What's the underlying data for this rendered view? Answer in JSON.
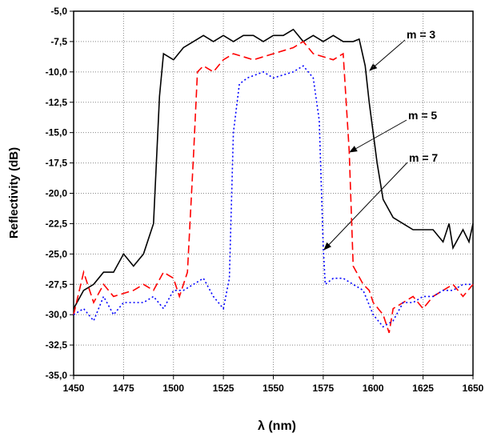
{
  "chart_data": {
    "type": "line",
    "xlabel": "λ  (nm)",
    "ylabel": "Reflectivity   (dB)",
    "xlim": [
      1450,
      1650
    ],
    "xticks": [
      1450,
      1475,
      1500,
      1525,
      1550,
      1575,
      1600,
      1625,
      1650
    ],
    "ylim": [
      -35,
      -5
    ],
    "yticks": [
      {
        "value": -35,
        "label": "-35,0"
      },
      {
        "value": -32.5,
        "label": "-32,5"
      },
      {
        "value": -30,
        "label": "-30,0"
      },
      {
        "value": -27.5,
        "label": "-27,5"
      },
      {
        "value": -25,
        "label": "-25,0"
      },
      {
        "value": -22.5,
        "label": "-22,5"
      },
      {
        "value": -20,
        "label": "-20,0"
      },
      {
        "value": -17.5,
        "label": "-17,5"
      },
      {
        "value": -15,
        "label": "-15,0"
      },
      {
        "value": -12.5,
        "label": "-12,5"
      },
      {
        "value": -10,
        "label": "-10,0"
      },
      {
        "value": -7.5,
        "label": "-7,5"
      },
      {
        "value": -5,
        "label": "-5,0"
      }
    ],
    "grid": true,
    "annotations": [
      "m = 3",
      "m = 5",
      "m = 7"
    ],
    "series": [
      {
        "color": "#000000",
        "dash": "none",
        "x": [
          1450,
          1455,
          1460,
          1465,
          1470,
          1475,
          1480,
          1485,
          1490,
          1493,
          1495,
          1500,
          1505,
          1510,
          1515,
          1520,
          1525,
          1530,
          1535,
          1540,
          1545,
          1550,
          1555,
          1560,
          1565,
          1570,
          1575,
          1580,
          1585,
          1590,
          1593,
          1596,
          1598,
          1602,
          1605,
          1610,
          1615,
          1620,
          1630,
          1635,
          1638,
          1640,
          1645,
          1648,
          1650
        ],
        "values": [
          -29.5,
          -28,
          -27.5,
          -26.5,
          -26.5,
          -25,
          -26,
          -25,
          -22.5,
          -12,
          -8.5,
          -9,
          -8,
          -7.5,
          -7,
          -7.5,
          -7,
          -7.5,
          -7,
          -7,
          -7.5,
          -7,
          -7,
          -6.5,
          -7.5,
          -7,
          -7.5,
          -7,
          -7.5,
          -7.5,
          -7.3,
          -9.5,
          -12.5,
          -17.5,
          -20.5,
          -22,
          -22.5,
          -23,
          -23,
          -24,
          -22.5,
          -24.5,
          -23,
          -24,
          -22.5
        ]
      },
      {
        "color": "#ff0000",
        "dash": "10 5",
        "x": [
          1450,
          1455,
          1460,
          1465,
          1470,
          1480,
          1485,
          1490,
          1495,
          1500,
          1503,
          1507,
          1510,
          1512,
          1515,
          1520,
          1525,
          1530,
          1540,
          1550,
          1560,
          1565,
          1570,
          1580,
          1585,
          1588,
          1590,
          1595,
          1598,
          1600,
          1605,
          1608,
          1610,
          1615,
          1620,
          1625,
          1630,
          1635,
          1640,
          1645,
          1650
        ],
        "values": [
          -30,
          -26.5,
          -29,
          -27.5,
          -28.5,
          -28,
          -27.5,
          -28,
          -26.5,
          -27,
          -28.5,
          -26.5,
          -17,
          -10,
          -9.5,
          -10,
          -9,
          -8.5,
          -9,
          -8.5,
          -8,
          -7.5,
          -8.5,
          -9,
          -8.5,
          -16.5,
          -26,
          -27.5,
          -28,
          -29,
          -30,
          -31.5,
          -29.5,
          -29,
          -28.5,
          -29.5,
          -28.5,
          -28,
          -27.5,
          -28.5,
          -27.5
        ]
      },
      {
        "color": "#0000ff",
        "dash": "2 3",
        "x": [
          1450,
          1455,
          1460,
          1465,
          1470,
          1475,
          1485,
          1490,
          1495,
          1500,
          1505,
          1510,
          1515,
          1520,
          1525,
          1528,
          1530,
          1533,
          1537,
          1545,
          1550,
          1560,
          1565,
          1570,
          1573,
          1575,
          1576,
          1580,
          1585,
          1590,
          1595,
          1600,
          1605,
          1610,
          1615,
          1620,
          1625,
          1630,
          1635,
          1640,
          1645,
          1650
        ],
        "values": [
          -30,
          -29.5,
          -30.5,
          -28.5,
          -30,
          -29,
          -29,
          -28.5,
          -29.5,
          -28,
          -28,
          -27.5,
          -27,
          -28.5,
          -29.5,
          -27,
          -15,
          -11,
          -10.5,
          -10,
          -10.5,
          -10,
          -9.5,
          -10.5,
          -14,
          -24.5,
          -27.5,
          -27,
          -27,
          -27.5,
          -28,
          -30,
          -31,
          -30.5,
          -29,
          -29,
          -28.5,
          -28.5,
          -28,
          -28,
          -27.5,
          -27.5
        ]
      }
    ]
  }
}
